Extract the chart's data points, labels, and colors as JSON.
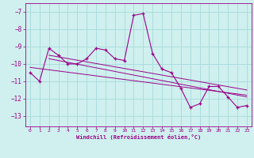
{
  "xlabel": "Windchill (Refroidissement éolien,°C)",
  "bg_color": "#cff0ee",
  "line_color": "#9b008b",
  "grid_color": "#aadddd",
  "x_ticks": [
    0,
    1,
    2,
    3,
    4,
    5,
    6,
    7,
    8,
    9,
    10,
    11,
    12,
    13,
    14,
    15,
    16,
    17,
    18,
    19,
    20,
    21,
    22,
    23
  ],
  "y_ticks": [
    -7,
    -8,
    -9,
    -10,
    -11,
    -12,
    -13
  ],
  "xlim": [
    -0.5,
    23.5
  ],
  "ylim": [
    -13.6,
    -6.5
  ],
  "series": [
    [
      0,
      -10.5
    ],
    [
      1,
      -11.0
    ],
    [
      2,
      -9.1
    ],
    [
      3,
      -9.5
    ],
    [
      4,
      -10.0
    ],
    [
      5,
      -10.0
    ],
    [
      6,
      -9.7
    ],
    [
      7,
      -9.1
    ],
    [
      8,
      -9.2
    ],
    [
      9,
      -9.7
    ],
    [
      10,
      -9.8
    ],
    [
      11,
      -7.2
    ],
    [
      12,
      -7.1
    ],
    [
      13,
      -9.4
    ],
    [
      14,
      -10.3
    ],
    [
      15,
      -10.5
    ],
    [
      16,
      -11.4
    ],
    [
      17,
      -12.5
    ],
    [
      18,
      -12.3
    ],
    [
      19,
      -11.3
    ],
    [
      20,
      -11.3
    ],
    [
      21,
      -11.9
    ],
    [
      22,
      -12.5
    ],
    [
      23,
      -12.4
    ]
  ],
  "trend_series": [
    [
      0,
      -10.2
    ],
    [
      23,
      -11.8
    ]
  ],
  "trend2_series": [
    [
      2,
      -9.5
    ],
    [
      23,
      -11.5
    ]
  ],
  "trend3_series": [
    [
      2,
      -9.7
    ],
    [
      23,
      -11.9
    ]
  ]
}
